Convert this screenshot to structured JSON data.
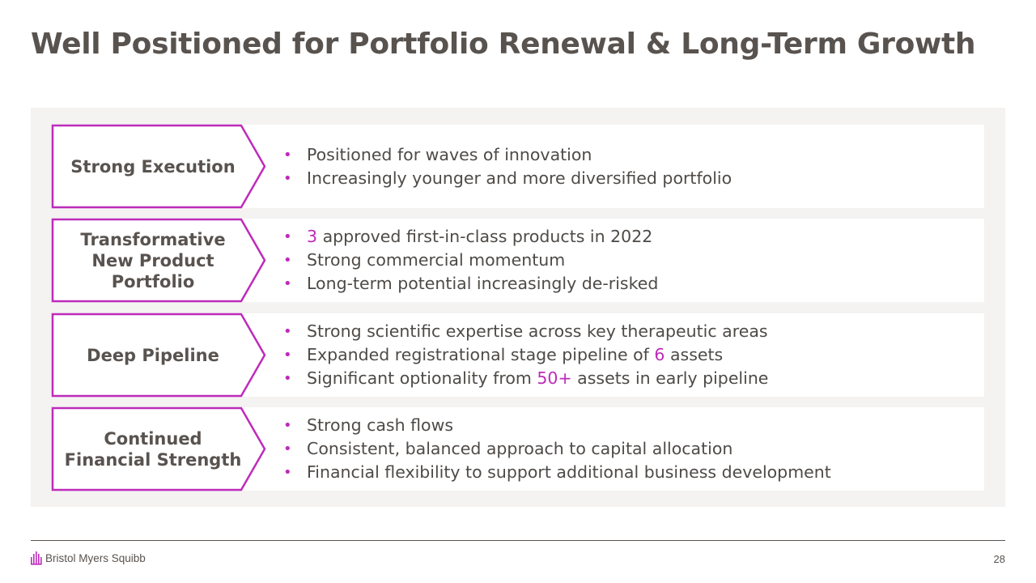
{
  "slide": {
    "title": "Well Positioned for Portfolio Renewal & Long-Term Growth",
    "page_number": "28"
  },
  "brand": {
    "logo_text": "Bristol Myers Squibb",
    "logo_mark": "bms-bars-icon",
    "accent_color": "#be2bbb",
    "text_color": "#59534f",
    "panel_color": "#f4f3f2"
  },
  "rows": [
    {
      "label": "Strong Execution",
      "bullets": [
        {
          "before": "",
          "highlight": "",
          "after": "Positioned for waves of innovation"
        },
        {
          "before": "",
          "highlight": "",
          "after": "Increasingly younger and more diversified portfolio"
        }
      ]
    },
    {
      "label": "Transformative New Product Portfolio",
      "bullets": [
        {
          "before": "",
          "highlight": "3",
          "after": " approved first-in-class products in 2022"
        },
        {
          "before": "",
          "highlight": "",
          "after": "Strong commercial momentum"
        },
        {
          "before": "",
          "highlight": "",
          "after": "Long-term potential increasingly de-risked"
        }
      ]
    },
    {
      "label": "Deep Pipeline",
      "bullets": [
        {
          "before": "",
          "highlight": "",
          "after": "Strong scientific expertise across key therapeutic areas"
        },
        {
          "before": "Expanded registrational stage pipeline of ",
          "highlight": "6",
          "after": " assets"
        },
        {
          "before": "Significant optionality from ",
          "highlight": "50+",
          "after": " assets in early pipeline"
        }
      ]
    },
    {
      "label": "Continued Financial Strength",
      "bullets": [
        {
          "before": "",
          "highlight": "",
          "after": "Strong cash flows"
        },
        {
          "before": "",
          "highlight": "",
          "after": "Consistent, balanced approach to capital allocation"
        },
        {
          "before": "",
          "highlight": "",
          "after": "Financial flexibility to support additional business development"
        }
      ]
    }
  ]
}
